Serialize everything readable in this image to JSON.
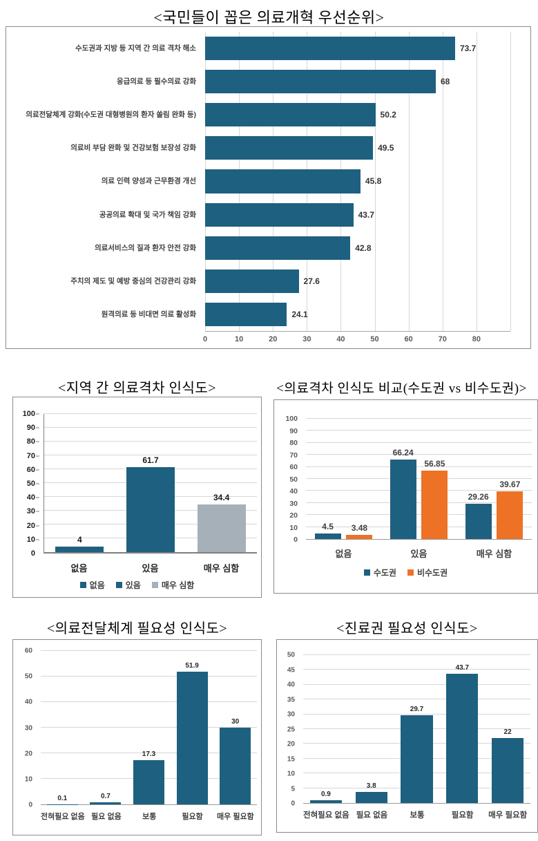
{
  "colors": {
    "teal": "#1e607f",
    "orange": "#ed7226",
    "gray": "#a6b0b9",
    "gridline": "#d6d6d6",
    "axis_line": "#9a9a9a",
    "tick_text": "#595959",
    "label_text": "#3f3f3f",
    "box_border": "#8a8a8a"
  },
  "chart_data": [
    {
      "id": "priority",
      "type": "bar",
      "orientation": "horizontal",
      "title": "<국민들이 꼽은 의료개혁 우선순위>",
      "categories": [
        "수도권과 지방 등 지역 간 의료 격차 해소",
        "응급의료 등 필수의료 강화",
        "의료전달체계 강화(수도권 대형병원의 환자 쏠림 완화 등)",
        "의료비 부담 완화 및 건강보험 보장성 강화",
        "의료 인력 양성과 근무환경 개선",
        "공공의료 확대 및 국가 책임 강화",
        "의료서비스의 질과 환자 안전 강화",
        "주치의 제도 및 예방 중심의 건강관리 강화",
        "원격의료 등 비대면 의료 활성화"
      ],
      "values": [
        73.7,
        68,
        50.2,
        49.5,
        45.8,
        43.7,
        42.8,
        27.6,
        24.1
      ],
      "value_labels": [
        "73.7",
        "68",
        "50.2",
        "49.5",
        "45.8",
        "43.7",
        "42.8",
        "27.6",
        "24.1"
      ],
      "xlim": [
        0,
        90
      ],
      "tick_step": 10,
      "tick_label_max": 80,
      "bar_color": "#1e607f",
      "grid": true,
      "legend": null,
      "xlabel": "",
      "ylabel": ""
    },
    {
      "id": "gap-perception",
      "type": "bar",
      "orientation": "vertical",
      "title": "<지역 간 의료격차 인식도>",
      "categories": [
        "없음",
        "있음",
        "매우 심함"
      ],
      "values": [
        4,
        61.7,
        34.4
      ],
      "value_labels": [
        "4",
        "61.7",
        "34.4"
      ],
      "bar_colors": [
        "#1e607f",
        "#1e607f",
        "#a6b0b9"
      ],
      "ylim": [
        0,
        100
      ],
      "tick_step": 10,
      "grid": true,
      "legend_position": "bottom",
      "legend": [
        {
          "label": "없음",
          "color": "#1e607f"
        },
        {
          "label": "있음",
          "color": "#1e607f"
        },
        {
          "label": "매우 심함",
          "color": "#a6b0b9"
        }
      ],
      "xlabel": "",
      "ylabel": ""
    },
    {
      "id": "gap-comparison",
      "type": "bar",
      "orientation": "vertical",
      "grouped": true,
      "title": "<의료격차 인식도 비교(수도권 vs 비수도권)>",
      "categories": [
        "없음",
        "있음",
        "매우 심함"
      ],
      "series": [
        {
          "name": "수도권",
          "color": "#1e607f",
          "values": [
            4.5,
            66.24,
            29.26
          ],
          "value_labels": [
            "4.5",
            "66.24",
            "29.26"
          ]
        },
        {
          "name": "비수도권",
          "color": "#ed7226",
          "values": [
            3.48,
            56.85,
            39.67
          ],
          "value_labels": [
            "3.48",
            "56.85",
            "39.67"
          ]
        }
      ],
      "ylim": [
        0,
        100
      ],
      "tick_step": 10,
      "grid": true,
      "legend_position": "bottom",
      "xlabel": "",
      "ylabel": ""
    },
    {
      "id": "delivery-need",
      "type": "bar",
      "orientation": "vertical",
      "title": "<의료전달체계 필요성 인식도>",
      "categories": [
        "전혀필요 없음",
        "필요 없음",
        "보통",
        "필요함",
        "매우 필요함"
      ],
      "values": [
        0.1,
        0.7,
        17.3,
        51.9,
        30
      ],
      "value_labels": [
        "0.1",
        "0.7",
        "17.3",
        "51.9",
        "30"
      ],
      "bar_color": "#1e607f",
      "ylim": [
        0,
        60
      ],
      "tick_step": 10,
      "grid": true,
      "legend": null,
      "xlabel": "",
      "ylabel": ""
    },
    {
      "id": "care-zone-need",
      "type": "bar",
      "orientation": "vertical",
      "title": "<진료권 필요성 인식도>",
      "categories": [
        "전혀필요 없음",
        "필요 없음",
        "보통",
        "필요함",
        "매우 필요함"
      ],
      "values": [
        0.9,
        3.8,
        29.7,
        43.7,
        22
      ],
      "value_labels": [
        "0.9",
        "3.8",
        "29.7",
        "43.7",
        "22"
      ],
      "bar_color": "#1e607f",
      "ylim": [
        0,
        50
      ],
      "tick_step": 5,
      "grid": true,
      "legend": null,
      "xlabel": "",
      "ylabel": ""
    }
  ]
}
